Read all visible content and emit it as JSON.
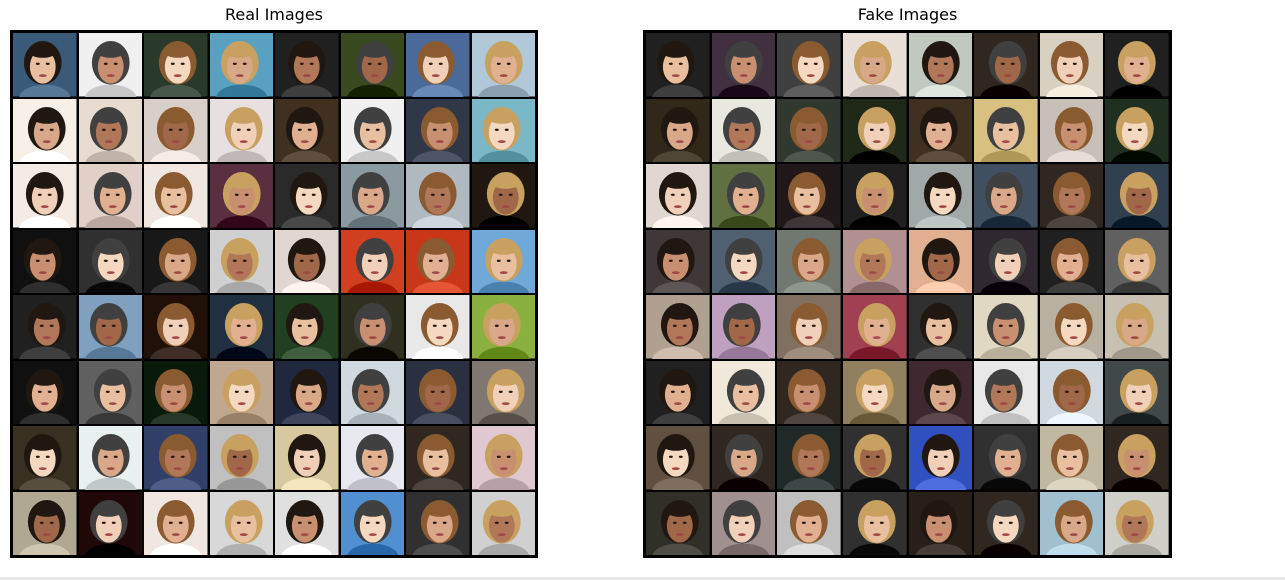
{
  "panels": {
    "real": {
      "title": "Real Images"
    },
    "fake": {
      "title": "Fake Images"
    }
  },
  "grid": {
    "rows": 8,
    "cols": 8
  },
  "real_tiles": [
    [
      "#3a5a7a",
      "#f0f0f0",
      "#2a3a2a",
      "#5aa0c0",
      "#202020",
      "#3a4a20",
      "#4a6a9a",
      "#b0c8d8"
    ],
    [
      "#f6f0e6",
      "#e8dcd0",
      "#d8d0c8",
      "#e8e0e0",
      "#403020",
      "#f0f0f0",
      "#303848",
      "#7ab8c8"
    ],
    [
      "#f4ece4",
      "#e0d0c8",
      "#f0e8e0",
      "#5a3040",
      "#2a2a2a",
      "#8a9aa0",
      "#b0b8c0",
      "#201810"
    ],
    [
      "#101010",
      "#303030",
      "#181818",
      "#d0d0d0",
      "#e0d8d0",
      "#d04020",
      "#c83818",
      "#70a8d8"
    ],
    [
      "#202020",
      "#80a0c0",
      "#201008",
      "#203040",
      "#204020",
      "#303020",
      "#e8e8e8",
      "#8ab040"
    ],
    [
      "#101010",
      "#606060",
      "#0a1a0a",
      "#c0a890",
      "#202840",
      "#d0d8e0",
      "#2a3040",
      "#807870"
    ],
    [
      "#383020",
      "#e8f0f0",
      "#304068",
      "#c0c0c0",
      "#d8c8a0",
      "#e8e8f0",
      "#302820",
      "#e0c8d0"
    ],
    [
      "#b0a890",
      "#200808",
      "#f0e8e0",
      "#d8d8d8",
      "#e0e0e0",
      "#5090d0",
      "#303030",
      "#d0d0d0"
    ]
  ],
  "fake_tiles": [
    [
      "#202020",
      "#403040",
      "#404040",
      "#e8e0d8",
      "#c0c8c0",
      "#302820",
      "#d8d0c0",
      "#202020"
    ],
    [
      "#302818",
      "#e8e8e0",
      "#303830",
      "#202818",
      "#403020",
      "#d8c080",
      "#c8c0b8",
      "#203020"
    ],
    [
      "#e0d8d0",
      "#607040",
      "#201818",
      "#202020",
      "#a0a8a8",
      "#405060",
      "#302820",
      "#304050"
    ],
    [
      "#403838",
      "#506070",
      "#707870",
      "#b09090",
      "#e0b090",
      "#302830",
      "#202020",
      "#606060"
    ],
    [
      "#b0a090",
      "#c0a0c0",
      "#807060",
      "#a04050",
      "#303030",
      "#e0d8c0",
      "#b8b0a0",
      "#c8c0b0"
    ],
    [
      "#202020",
      "#f0e8d8",
      "#302820",
      "#908060",
      "#402830",
      "#e8e8e8",
      "#d0d8e0",
      "#404848"
    ],
    [
      "#605040",
      "#302820",
      "#202828",
      "#303030",
      "#3050c0",
      "#303030",
      "#c0b8a0",
      "#302820"
    ],
    [
      "#303028",
      "#a09090",
      "#c0c0c0",
      "#303030",
      "#282018",
      "#302820",
      "#a0c0d0",
      "#d0d0c8"
    ]
  ]
}
